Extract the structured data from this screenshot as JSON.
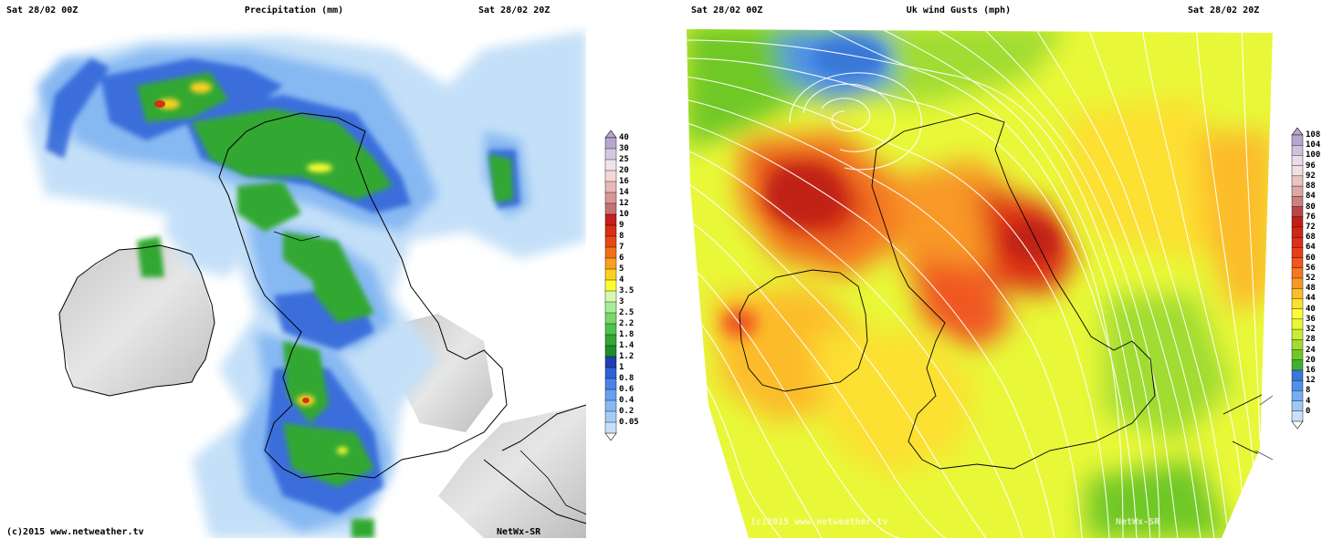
{
  "left": {
    "header_left": "Sat 28/02 00Z",
    "header_title": "Precipitation (mm)",
    "header_right": "Sat 28/02 20Z",
    "footer_copyright": "(c)2015  www.netweather.tv",
    "footer_model": "NetWx-SR",
    "legend": {
      "labels": [
        "40",
        "30",
        "25",
        "20",
        "16",
        "14",
        "12",
        "10",
        "9",
        "8",
        "7",
        "6",
        "5",
        "4",
        "3.5",
        "3",
        "2.5",
        "2.2",
        "1.8",
        "1.4",
        "1.2",
        "1",
        "0.8",
        "0.6",
        "0.4",
        "0.2",
        "0.05"
      ],
      "colors": [
        "#b8a6cc",
        "#d4c7e0",
        "#f0e4ea",
        "#f2d8d8",
        "#e8b8b8",
        "#d89898",
        "#c87070",
        "#c42020",
        "#d83010",
        "#e84818",
        "#f07018",
        "#f8a020",
        "#fcd020",
        "#fcfc30",
        "#d8f8b0",
        "#a8ec98",
        "#78d868",
        "#50c448",
        "#30a830",
        "#1e8c2a",
        "#2040b0",
        "#2f62d8",
        "#4a84e6",
        "#6aa0ee",
        "#86b8f2",
        "#a4ccf6",
        "#c4e0f8"
      ]
    }
  },
  "right": {
    "header_left": "Sat 28/02 00Z",
    "header_title": "Uk wind Gusts (mph)",
    "header_right": "Sat 28/02 20Z",
    "footer_copyright": "(c)2015  www.netweather.tv",
    "footer_model": "NetWx-SR",
    "legend": {
      "labels": [
        "108",
        "104",
        "100",
        "96",
        "92",
        "88",
        "84",
        "80",
        "76",
        "72",
        "68",
        "64",
        "60",
        "56",
        "52",
        "48",
        "44",
        "40",
        "36",
        "32",
        "28",
        "24",
        "20",
        "16",
        "12",
        "8",
        "4",
        "0"
      ],
      "colors": [
        "#b8a6cc",
        "#d0c0dc",
        "#e8dce8",
        "#f0e0e0",
        "#e8c4c4",
        "#dca8a8",
        "#cc8080",
        "#b84848",
        "#c02018",
        "#d02818",
        "#dc3018",
        "#e84018",
        "#f05820",
        "#f47820",
        "#f89828",
        "#fcbc2c",
        "#fce030",
        "#fcfc38",
        "#e8f838",
        "#c8ec38",
        "#a0dc30",
        "#70c828",
        "#40b030",
        "#3878d8",
        "#5090e8",
        "#78acf0",
        "#a0c8f4",
        "#c8e0f8"
      ]
    }
  }
}
